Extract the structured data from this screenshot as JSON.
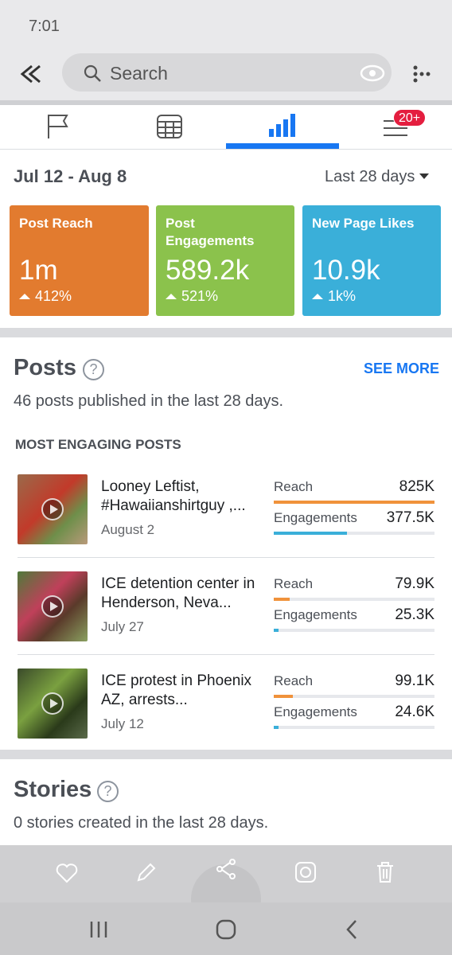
{
  "status_bar": {
    "time": "7:01"
  },
  "toolbar": {
    "search_placeholder": "Search"
  },
  "tabs": {
    "badge": "20+"
  },
  "summary": {
    "date_range": "Jul 12 - Aug 8",
    "period": "Last 28 days",
    "cards": [
      {
        "title": "Post Reach",
        "value": "1m",
        "change": "412%",
        "color": "#e27b2f"
      },
      {
        "title": "Post Engagements",
        "value": "589.2k",
        "change": "521%",
        "color": "#8bc24c"
      },
      {
        "title": "New Page Likes",
        "value": "10.9k",
        "change": "1k%",
        "color": "#3aafd9"
      }
    ]
  },
  "posts": {
    "title": "Posts",
    "see_more": "SEE MORE",
    "subtitle": "46 posts published in the last 28 days.",
    "section_label": "MOST ENGAGING POSTS",
    "metric_labels": {
      "reach": "Reach",
      "engagements": "Engagements"
    },
    "reach_color": "#f0923b",
    "engagement_color": "#3aafd9",
    "items": [
      {
        "title": "Looney Leftist, #Hawaiianshirtguy ,...",
        "date": "August 2",
        "reach": {
          "value": 825000,
          "label": "825K"
        },
        "engagements": {
          "value": 377500,
          "label": "377.5K"
        }
      },
      {
        "title": "ICE detention center in Henderson, Neva...",
        "date": "July 27",
        "reach": {
          "value": 79900,
          "label": "79.9K"
        },
        "engagements": {
          "value": 25300,
          "label": "25.3K"
        }
      },
      {
        "title": "ICE protest in Phoenix AZ, arrests...",
        "date": "July 12",
        "reach": {
          "value": 99100,
          "label": "99.1K"
        },
        "engagements": {
          "value": 24600,
          "label": "24.6K"
        }
      }
    ]
  },
  "stories": {
    "title": "Stories",
    "subtitle": "0 stories created in the last 28 days."
  }
}
